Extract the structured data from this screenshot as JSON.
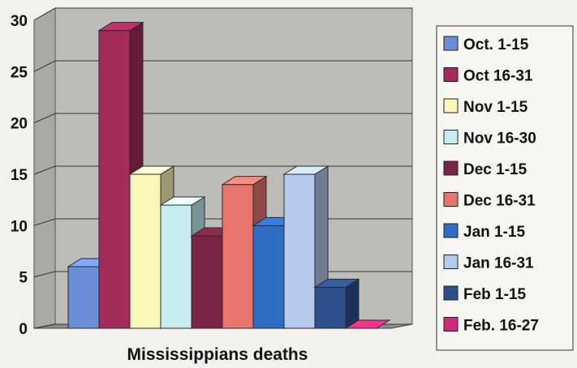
{
  "chart_data": {
    "type": "bar",
    "style": "3d-column",
    "xlabel": "Mississippians deaths",
    "ylabel": "",
    "ylim": [
      0,
      30
    ],
    "yticks": [
      "0",
      "5",
      "10",
      "15",
      "20",
      "25",
      "30"
    ],
    "grid": true,
    "legend_position": "right",
    "series": [
      {
        "name": "Oct. 1-15",
        "value": 6,
        "color": "#6b8fd6"
      },
      {
        "name": "Oct 16-31",
        "value": 29,
        "color": "#a32b5a"
      },
      {
        "name": "Nov 1-15",
        "value": 15,
        "color": "#fbf7b8"
      },
      {
        "name": "Nov 16-30",
        "value": 12,
        "color": "#c7ecf2"
      },
      {
        "name": "Dec 1-15",
        "value": 9,
        "color": "#7a2545"
      },
      {
        "name": "Dec 16-31",
        "value": 14,
        "color": "#e8766e"
      },
      {
        "name": "Jan 1-15",
        "value": 10,
        "color": "#2f6cc4"
      },
      {
        "name": "Jan 16-31",
        "value": 15,
        "color": "#b7c8ee"
      },
      {
        "name": "Feb 1-15",
        "value": 4,
        "color": "#2d4f8c"
      },
      {
        "name": "Feb. 16-27",
        "value": 0,
        "color": "#d12a7a"
      }
    ]
  }
}
